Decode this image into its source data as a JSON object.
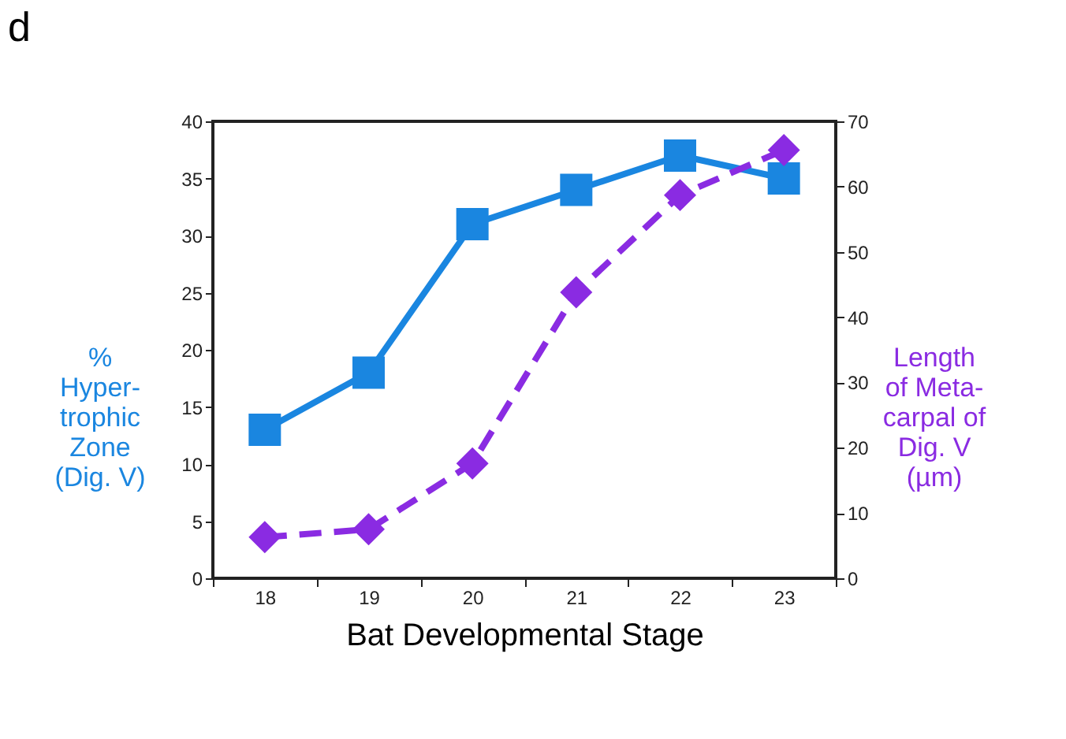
{
  "chart_data": {
    "type": "line",
    "title": "d",
    "xlabel": "Bat Developmental Stage",
    "ylabel": "%\nHyper-\ntrophic\nZone\n(Dig. V)",
    "y2label": "Length\nof Meta-\ncarpal of\nDig. V\n(µm)",
    "categories": [
      "18",
      "19",
      "20",
      "21",
      "22",
      "23"
    ],
    "series": [
      {
        "color": "#1a86e0",
        "marker": "square",
        "line_style": "solid",
        "values": [
          13,
          18,
          31,
          34,
          37,
          35
        ]
      },
      {
        "color": "#8a2be2",
        "marker": "diamond",
        "line_style": "dashed",
        "axis": "y2",
        "values": [
          6.3,
          7.5,
          17.6,
          43.8,
          58.7,
          65.6
        ]
      }
    ],
    "ylim": [
      0,
      40
    ],
    "yticks": [
      0,
      5,
      10,
      15,
      20,
      25,
      30,
      35,
      40
    ],
    "y2lim": [
      0,
      70
    ],
    "y2ticks": [
      0,
      10,
      20,
      30,
      40,
      50,
      60,
      70
    ],
    "grid": false
  }
}
